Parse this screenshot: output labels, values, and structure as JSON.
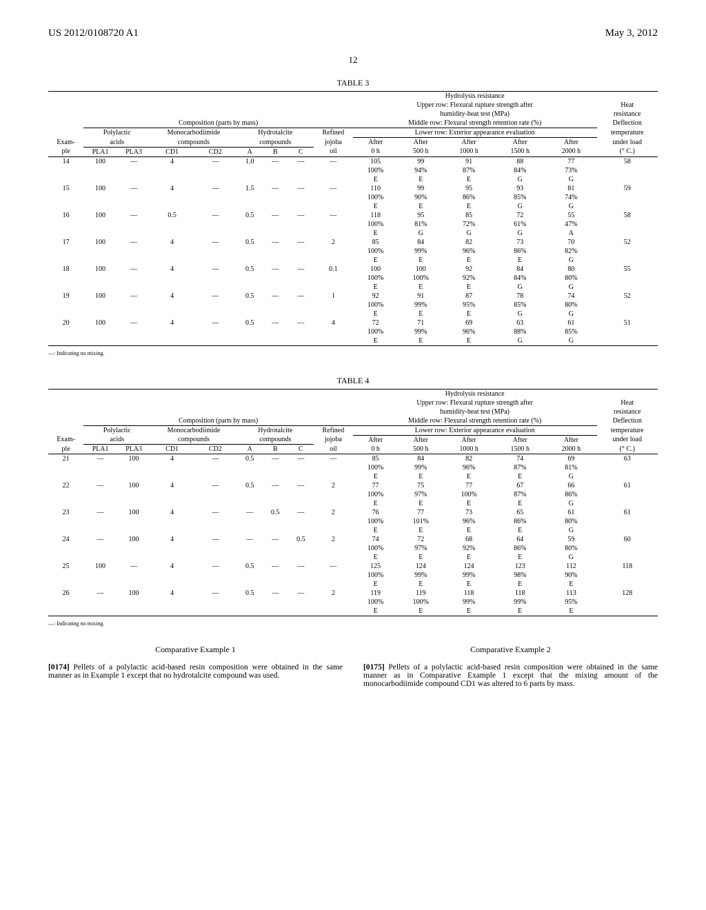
{
  "header": {
    "left": "US 2012/0108720 A1",
    "right": "May 3, 2012"
  },
  "page_number": "12",
  "footnote": "—: Indicating no mixing.",
  "col_labels": {
    "example": "Exam-",
    "ple": "ple",
    "composition": "Composition (parts by mass)",
    "polylactic": "Polylactic",
    "acids": "acids",
    "pla1": "PLA1",
    "pla3": "PLA3",
    "mono": "Monocarbodiimide",
    "compounds": "compounds",
    "cd1": "CD1",
    "cd2": "CD2",
    "hydro": "Hydrotalcite",
    "hydro_comp": "compounds",
    "a": "A",
    "b": "B",
    "c": "C",
    "refined": "Refined",
    "jojoba": "jojoba",
    "oil": "oil",
    "hydrolysis": "Hydrolysis resistance",
    "upper": "Upper row: Flexural rupture strength after",
    "humid": "humidity-heat test (MPa)",
    "middle": "Middle row: Flexural strength retention rate (%)",
    "lower": "Lower row: Exterior appearance evaluation",
    "after": "After",
    "h0": "0 h",
    "h500": "500 h",
    "h1000": "1000 h",
    "h1500": "1500 h",
    "h2000": "2000 h",
    "heat": "Heat",
    "resistance": "resistance",
    "deflection": "Deflection",
    "temperature": "temperature",
    "underload": "under load",
    "degc": "(° C.)"
  },
  "tables": [
    {
      "title": "TABLE 3",
      "rows": [
        {
          "ex": "14",
          "pla1": "100",
          "pla3": "—",
          "cd1": "4",
          "cd2": "—",
          "a": "1.0",
          "b": "—",
          "c": "—",
          "oil": "—",
          "l1": [
            "105",
            "99",
            "91",
            "88",
            "77"
          ],
          "l2": [
            "100%",
            "94%",
            "87%",
            "84%",
            "73%"
          ],
          "l3": [
            "E",
            "E",
            "E",
            "G",
            "G"
          ],
          "temp": "58"
        },
        {
          "ex": "15",
          "pla1": "100",
          "pla3": "—",
          "cd1": "4",
          "cd2": "—",
          "a": "1.5",
          "b": "—",
          "c": "—",
          "oil": "—",
          "l1": [
            "110",
            "99",
            "95",
            "93",
            "81"
          ],
          "l2": [
            "100%",
            "90%",
            "86%",
            "85%",
            "74%"
          ],
          "l3": [
            "E",
            "E",
            "E",
            "G",
            "G"
          ],
          "temp": "59"
        },
        {
          "ex": "16",
          "pla1": "100",
          "pla3": "—",
          "cd1": "0.5",
          "cd2": "—",
          "a": "0.5",
          "b": "—",
          "c": "—",
          "oil": "—",
          "l1": [
            "118",
            "95",
            "85",
            "72",
            "55"
          ],
          "l2": [
            "100%",
            "81%",
            "72%",
            "61%",
            "47%"
          ],
          "l3": [
            "E",
            "G",
            "G",
            "G",
            "A"
          ],
          "temp": "58"
        },
        {
          "ex": "17",
          "pla1": "100",
          "pla3": "—",
          "cd1": "4",
          "cd2": "—",
          "a": "0.5",
          "b": "—",
          "c": "—",
          "oil": "2",
          "l1": [
            "85",
            "84",
            "82",
            "73",
            "70"
          ],
          "l2": [
            "100%",
            "99%",
            "96%",
            "86%",
            "82%"
          ],
          "l3": [
            "E",
            "E",
            "E",
            "E",
            "G"
          ],
          "temp": "52"
        },
        {
          "ex": "18",
          "pla1": "100",
          "pla3": "—",
          "cd1": "4",
          "cd2": "—",
          "a": "0.5",
          "b": "—",
          "c": "—",
          "oil": "0.1",
          "l1": [
            "100",
            "100",
            "92",
            "84",
            "80"
          ],
          "l2": [
            "100%",
            "100%",
            "92%",
            "84%",
            "80%"
          ],
          "l3": [
            "E",
            "E",
            "E",
            "G",
            "G"
          ],
          "temp": "55"
        },
        {
          "ex": "19",
          "pla1": "100",
          "pla3": "—",
          "cd1": "4",
          "cd2": "—",
          "a": "0.5",
          "b": "—",
          "c": "—",
          "oil": "1",
          "l1": [
            "92",
            "91",
            "87",
            "78",
            "74"
          ],
          "l2": [
            "100%",
            "99%",
            "95%",
            "85%",
            "80%"
          ],
          "l3": [
            "E",
            "E",
            "E",
            "G",
            "G"
          ],
          "temp": "52"
        },
        {
          "ex": "20",
          "pla1": "100",
          "pla3": "—",
          "cd1": "4",
          "cd2": "—",
          "a": "0.5",
          "b": "—",
          "c": "—",
          "oil": "4",
          "l1": [
            "72",
            "71",
            "69",
            "63",
            "61"
          ],
          "l2": [
            "100%",
            "99%",
            "96%",
            "88%",
            "85%"
          ],
          "l3": [
            "E",
            "E",
            "E",
            "G",
            "G"
          ],
          "temp": "51"
        }
      ]
    },
    {
      "title": "TABLE 4",
      "rows": [
        {
          "ex": "21",
          "pla1": "—",
          "pla3": "100",
          "cd1": "4",
          "cd2": "—",
          "a": "0.5",
          "b": "—",
          "c": "—",
          "oil": "—",
          "l1": [
            "85",
            "84",
            "82",
            "74",
            "69"
          ],
          "l2": [
            "100%",
            "99%",
            "96%",
            "87%",
            "81%"
          ],
          "l3": [
            "E",
            "E",
            "E",
            "E",
            "G"
          ],
          "temp": "63"
        },
        {
          "ex": "22",
          "pla1": "—",
          "pla3": "100",
          "cd1": "4",
          "cd2": "—",
          "a": "0.5",
          "b": "—",
          "c": "—",
          "oil": "2",
          "l1": [
            "77",
            "75",
            "77",
            "67",
            "66"
          ],
          "l2": [
            "100%",
            "97%",
            "100%",
            "87%",
            "86%"
          ],
          "l3": [
            "E",
            "E",
            "E",
            "E",
            "G"
          ],
          "temp": "61"
        },
        {
          "ex": "23",
          "pla1": "—",
          "pla3": "100",
          "cd1": "4",
          "cd2": "—",
          "a": "—",
          "b": "0.5",
          "c": "—",
          "oil": "2",
          "l1": [
            "76",
            "77",
            "73",
            "65",
            "61"
          ],
          "l2": [
            "100%",
            "101%",
            "96%",
            "86%",
            "80%"
          ],
          "l3": [
            "E",
            "E",
            "E",
            "E",
            "G"
          ],
          "temp": "61"
        },
        {
          "ex": "24",
          "pla1": "—",
          "pla3": "100",
          "cd1": "4",
          "cd2": "—",
          "a": "—",
          "b": "—",
          "c": "0.5",
          "oil": "2",
          "l1": [
            "74",
            "72",
            "68",
            "64",
            "59"
          ],
          "l2": [
            "100%",
            "97%",
            "92%",
            "86%",
            "80%"
          ],
          "l3": [
            "E",
            "E",
            "E",
            "E",
            "G"
          ],
          "temp": "60"
        },
        {
          "ex": "25",
          "pla1": "100",
          "pla3": "—",
          "cd1": "4",
          "cd2": "—",
          "a": "0.5",
          "b": "—",
          "c": "—",
          "oil": "—",
          "l1": [
            "125",
            "124",
            "124",
            "123",
            "112"
          ],
          "l2": [
            "100%",
            "99%",
            "99%",
            "98%",
            "90%"
          ],
          "l3": [
            "E",
            "E",
            "E",
            "E",
            "E"
          ],
          "temp": "118"
        },
        {
          "ex": "26",
          "pla1": "—",
          "pla3": "100",
          "cd1": "4",
          "cd2": "—",
          "a": "0.5",
          "b": "—",
          "c": "—",
          "oil": "2",
          "l1": [
            "119",
            "119",
            "118",
            "118",
            "113"
          ],
          "l2": [
            "100%",
            "100%",
            "99%",
            "99%",
            "95%"
          ],
          "l3": [
            "E",
            "E",
            "E",
            "E",
            "E"
          ],
          "temp": "128"
        }
      ]
    }
  ],
  "body": {
    "left": {
      "title": "Comparative Example 1",
      "parnum": "[0174]",
      "text": "   Pellets of a polylactic acid-based resin composition were obtained in the same manner as in Example 1 except that no hydrotalcite compound was used."
    },
    "right": {
      "title": "Comparative Example 2",
      "parnum": "[0175]",
      "text": "   Pellets of a polylactic acid-based resin composition were obtained in the same manner as in Comparative Example 1 except that the mixing amount of the monocarbodiimide compound CD1 was altered to 6 parts by mass."
    }
  }
}
